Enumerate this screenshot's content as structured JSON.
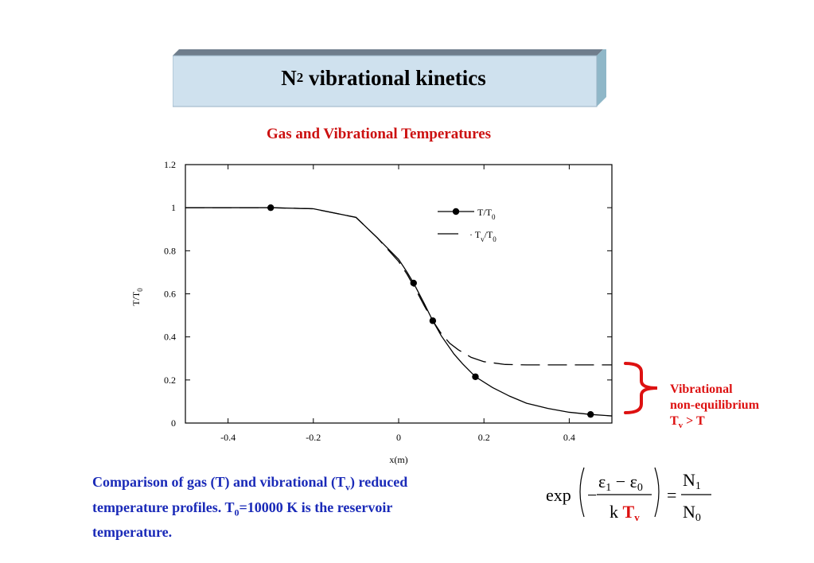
{
  "slide_title": {
    "main": "N",
    "sub": "2",
    "rest": " vibrational kinetics"
  },
  "chart_data": {
    "type": "line",
    "title": "Gas and Vibrational Temperatures",
    "xlabel": "x(m)",
    "ylabel_main": "T/T",
    "ylabel_sub": "0",
    "xlim": [
      -0.5,
      0.5
    ],
    "ylim": [
      0,
      1.2
    ],
    "xticks": [
      -0.4,
      -0.2,
      0,
      0.2,
      0.4
    ],
    "xtick_labels": [
      "-0.4",
      "-0.2",
      "0",
      "0.2",
      "0.4"
    ],
    "yticks": [
      0,
      0.2,
      0.4,
      0.6,
      0.8,
      1,
      1.2
    ],
    "ytick_labels": [
      "0",
      "0.2",
      "0.4",
      "0.6",
      "0.8",
      "1",
      "1.2"
    ],
    "grid": false,
    "legend_position": "top-right",
    "series": [
      {
        "name": "T/T0",
        "legend_main": "T/T",
        "legend_sub": "0",
        "style": "solid-with-markers",
        "x": [
          -0.5,
          -0.3,
          -0.2,
          -0.1,
          -0.05,
          0.0,
          0.02,
          0.035,
          0.06,
          0.08,
          0.1,
          0.13,
          0.15,
          0.18,
          0.22,
          0.26,
          0.3,
          0.35,
          0.4,
          0.45,
          0.5
        ],
        "y": [
          1.0,
          1.0,
          0.995,
          0.955,
          0.86,
          0.76,
          0.7,
          0.65,
          0.555,
          0.475,
          0.405,
          0.32,
          0.275,
          0.215,
          0.165,
          0.125,
          0.092,
          0.068,
          0.05,
          0.04,
          0.033
        ],
        "markers_x": [
          -0.3,
          0.035,
          0.08,
          0.18,
          0.45
        ],
        "markers_y": [
          1.0,
          0.65,
          0.475,
          0.215,
          0.04
        ]
      },
      {
        "name": "Tv/T0",
        "legend_prefix": "· T",
        "legend_sub1": "v",
        "legend_mid": "/T",
        "legend_sub2": "0",
        "style": "dashed",
        "x": [
          -0.5,
          -0.3,
          -0.2,
          -0.1,
          -0.05,
          0.0,
          0.02,
          0.04,
          0.06,
          0.08,
          0.1,
          0.12,
          0.14,
          0.17,
          0.2,
          0.25,
          0.3,
          0.4,
          0.5
        ],
        "y": [
          1.0,
          1.0,
          0.995,
          0.955,
          0.86,
          0.75,
          0.69,
          0.62,
          0.545,
          0.475,
          0.415,
          0.37,
          0.34,
          0.305,
          0.285,
          0.272,
          0.27,
          0.27,
          0.27
        ]
      }
    ]
  },
  "annotation": {
    "line1": "Vibrational",
    "line2": "non-equilibrium",
    "line3_a": "T",
    "line3_sub": "v",
    "line3_b": " > T"
  },
  "caption": {
    "p1": "Comparison of gas (T) and vibrational (T",
    "p1_sub": "v",
    "p2": ") reduced temperature profiles. T",
    "p2_sub": "0",
    "p3": "=10000 K is the reservoir temperature."
  },
  "equation": {
    "exp": "exp",
    "minus": "−",
    "num_eps1": "ε",
    "num_sub1": "1",
    "num_minus": " − ",
    "num_eps0": "ε",
    "num_sub0": "0",
    "den_k": "k ",
    "den_T": "T",
    "den_Tsub": "v",
    "equals": "=",
    "rhs_num": "N",
    "rhs_num_sub": "1",
    "rhs_den": "N",
    "rhs_den_sub": "0",
    "highlight_color": "#dd1111"
  }
}
